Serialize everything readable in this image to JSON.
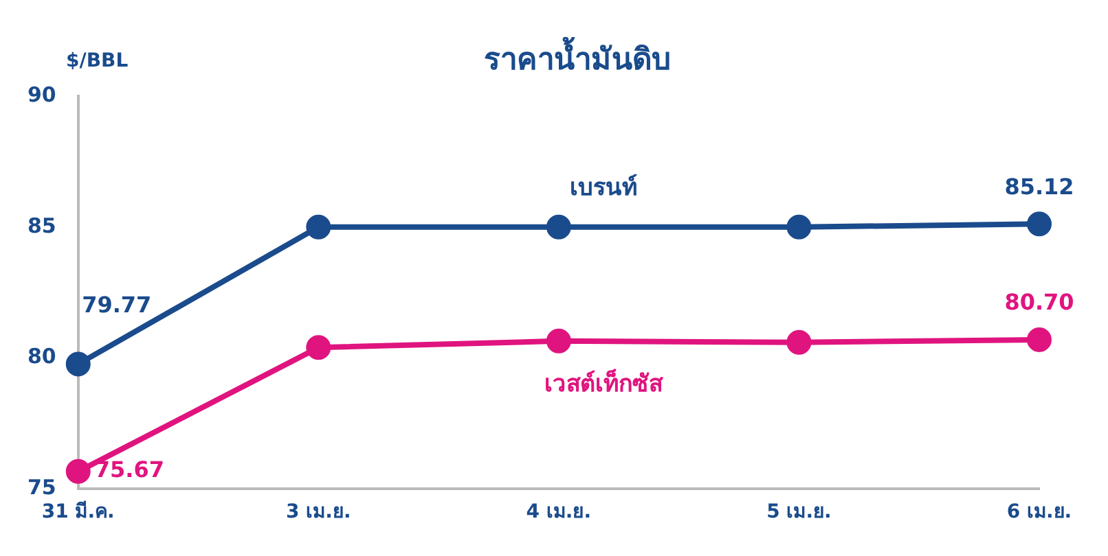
{
  "chart_data": {
    "type": "line",
    "title": "ราคาน้ำมันดิบ",
    "ylabel": "$/BBL",
    "categories": [
      "31 มี.ค.",
      "3 เม.ย.",
      "4 เม.ย.",
      "5 เม.ย.",
      "6 เม.ย."
    ],
    "series": [
      {
        "name": "เบรนท์",
        "color": "#1a4b8c",
        "values": [
          79.77,
          85.0,
          85.0,
          85.0,
          85.12
        ],
        "value_labels": [
          "79.77",
          null,
          null,
          null,
          "85.12"
        ]
      },
      {
        "name": "เวสต์เท็กซัส",
        "color": "#e0147f",
        "values": [
          75.67,
          80.4,
          80.65,
          80.6,
          80.7
        ],
        "value_labels": [
          "75.67",
          null,
          null,
          null,
          "80.70"
        ]
      }
    ],
    "ylim": [
      75,
      90
    ],
    "yticks": [
      75,
      80,
      85,
      90
    ],
    "grid": false,
    "legend": false,
    "marker": "circle",
    "line_style": "solid"
  }
}
